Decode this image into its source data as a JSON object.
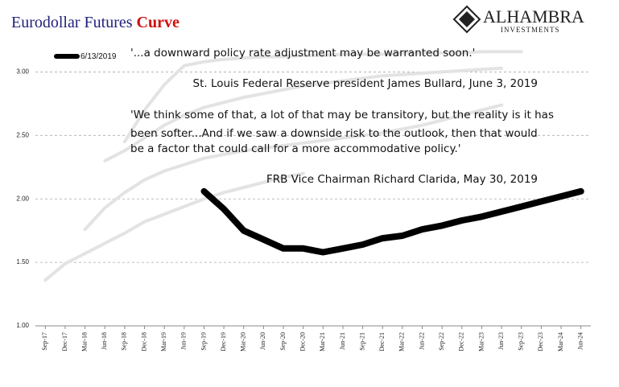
{
  "chart_data": {
    "type": "line",
    "title": "Eurodollar Futures",
    "title_highlight": "Curve",
    "logo": {
      "name": "ALHAMBRA",
      "tagline": "INVESTMENTS"
    },
    "annotations": [
      "'...a downward policy rate adjustment may be warranted soon.'",
      "St. Louis Federal Reserve president James Bullard, June 3, 2019",
      "'We think some of that, a lot of that may be transitory, but the reality is it has",
      "been softer...And if we saw a downside risk to the outlook, then that would",
      "be a factor that could call for a more accommodative policy.'",
      "FRB Vice Chairman Richard Clarida, May 30, 2019"
    ],
    "categories": [
      "Sep-17",
      "Dec-17",
      "Mar-18",
      "Jun-18",
      "Sep-18",
      "Dec-18",
      "Mar-19",
      "Jun-19",
      "Sep-19",
      "Dec-19",
      "Mar-20",
      "Jun-20",
      "Sep-20",
      "Dec-20",
      "Mar-21",
      "Jun-21",
      "Sep-21",
      "Dec-21",
      "Mar-22",
      "Jun-22",
      "Sep-22",
      "Dec-22",
      "Mar-23",
      "Jun-23",
      "Sep-23",
      "Dec-23",
      "Mar-24",
      "Jun-24"
    ],
    "ylim": [
      1.0,
      3.25
    ],
    "yticks": [
      {
        "value": 1.0,
        "label": "1.00"
      },
      {
        "value": 1.5,
        "label": "1.50"
      },
      {
        "value": 2.0,
        "label": "2.00"
      },
      {
        "value": 2.5,
        "label": "2.50"
      },
      {
        "value": 3.0,
        "label": "3.00"
      }
    ],
    "grid": true,
    "legend": "top-left",
    "series": [
      {
        "color": "#e3e3e3",
        "values": [
          1.36,
          1.49,
          1.57,
          1.65,
          1.73,
          1.82,
          1.88,
          1.94,
          2.0,
          2.05,
          2.09,
          2.13,
          2.17,
          2.2,
          null,
          null,
          null,
          null,
          null,
          null,
          null,
          null,
          null,
          null,
          null,
          null,
          null,
          null
        ]
      },
      {
        "color": "#e3e3e3",
        "values": [
          null,
          null,
          1.76,
          1.93,
          2.05,
          2.15,
          2.22,
          2.27,
          2.32,
          2.35,
          2.38,
          2.4,
          2.42,
          2.44,
          2.46,
          2.48,
          2.5,
          2.52,
          2.55,
          2.58,
          2.62,
          2.66,
          2.7,
          2.74,
          null,
          null,
          null,
          null
        ]
      },
      {
        "color": "#e3e3e3",
        "values": [
          null,
          null,
          null,
          2.3,
          2.38,
          2.48,
          2.58,
          2.66,
          2.72,
          2.76,
          2.8,
          2.83,
          2.86,
          2.89,
          2.91,
          2.93,
          2.95,
          2.97,
          2.98,
          2.99,
          3.0,
          3.01,
          3.02,
          3.03,
          null,
          null,
          null,
          null
        ]
      },
      {
        "color": "#e3e3e3",
        "values": [
          null,
          null,
          null,
          null,
          2.45,
          2.7,
          2.9,
          3.05,
          3.08,
          3.1,
          3.11,
          3.12,
          3.12,
          3.13,
          3.13,
          3.14,
          3.14,
          3.14,
          3.15,
          3.15,
          3.15,
          3.15,
          3.16,
          3.16,
          3.16,
          null,
          null,
          null
        ]
      },
      {
        "name": "6/13/2019",
        "color": "#000000",
        "values": [
          null,
          null,
          null,
          null,
          null,
          null,
          null,
          null,
          2.06,
          1.92,
          1.75,
          1.68,
          1.61,
          1.61,
          1.58,
          1.61,
          1.64,
          1.69,
          1.71,
          1.76,
          1.79,
          1.83,
          1.86,
          1.9,
          1.94,
          1.98,
          2.02,
          2.06
        ]
      }
    ]
  }
}
